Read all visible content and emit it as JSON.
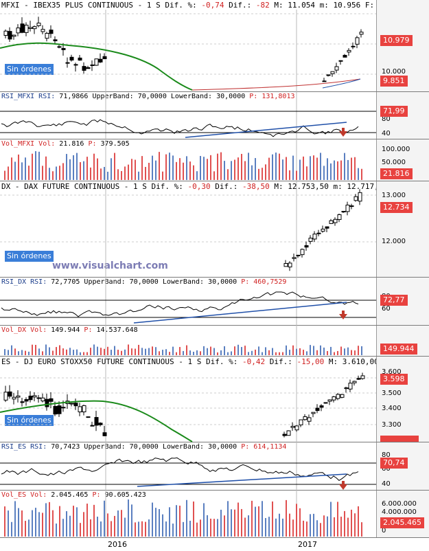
{
  "colors": {
    "up_line": "#1f4fa8",
    "down_line": "#d02020",
    "ma_green": "#1a8a1a",
    "rsi_blue": "#1f4fa8",
    "vol_blue": "#5a7fc0",
    "vol_red": "#e05050"
  },
  "panels": {
    "mfxi": {
      "header_a": "MFXI - IBEX35 PLUS CONTINUOUS -  1 S Dif. %: ",
      "dif_pct": "-0,74",
      "header_b": " Dif.: ",
      "dif": "-82",
      "header_c": " M: 11.054 m: 10.956 F:",
      "ticks": [
        "10.979",
        "10.000",
        "9.851"
      ],
      "badge_last": "10.979",
      "badge_low": "9.851",
      "sin_ordenes": "Sin órdenes"
    },
    "rsi_mfxi": {
      "label": "RSI_MFXI RSI: ",
      "value": "71,9866",
      "ub": " UpperBand: 70,0000 LowerBand: 30,0000 ",
      "p_label": "P: ",
      "p": "131,8013",
      "ticks": [
        "80",
        "40"
      ],
      "badge": "71,99"
    },
    "vol_mfxi": {
      "label": "Vol_MFXI Vol: ",
      "value": "21.816",
      "p_label": " P: ",
      "p": "379.505",
      "ticks": [
        "100.000",
        "50.000"
      ],
      "badge": "21.816"
    },
    "dx": {
      "header_a": "DX - DAX FUTURE CONTINUOUS -  1 S Dif. %: ",
      "dif_pct": "-0,30",
      "header_b": " Dif.: ",
      "dif": "-38,50",
      "header_c": " M: 12.753,50 m: 12.717,",
      "ticks": [
        "13.000",
        "12.000"
      ],
      "badge_last": "12.734",
      "sin_ordenes": "Sin órdenes",
      "watermark": "www.visualchart.com"
    },
    "rsi_dx": {
      "label": "RSI_DX RSI: ",
      "value": "72,7705",
      "ub": " UpperBand: 70,0000 LowerBand: 30,0000 ",
      "p_label": "P: ",
      "p": "460,7529",
      "ticks": [
        "80",
        "60"
      ],
      "badge": "72,77"
    },
    "vol_dx": {
      "label": "Vol_DX Vol: ",
      "value": "149.944",
      "p_label": " P: ",
      "p": "14.537.648",
      "badge": "149.944"
    },
    "es": {
      "header_a": "ES - DJ EURO STOXX50 FUTURE CONTINUOUS -  1 S Dif. %: ",
      "dif_pct": "-0,42",
      "header_b": " Dif.: ",
      "dif": "-15,00",
      "header_c": " M: 3.610,00",
      "ticks": [
        "3.600",
        "3.500",
        "3.400",
        "3.300"
      ],
      "badge_last": "3.598",
      "sin_ordenes": "Sin órdenes"
    },
    "rsi_es": {
      "label": "RSI_ES RSI: ",
      "value": "70,7423",
      "ub": " UpperBand: 70,0000 LowerBand: 30,0000 ",
      "p_label": "P: ",
      "p": "614,1134",
      "ticks": [
        "80",
        "60",
        "40"
      ],
      "badge": "70,74"
    },
    "vol_es": {
      "label": "Vol_ES Vol: ",
      "value": "2.045.465",
      "p_label": " P: ",
      "p": "90.605.423",
      "ticks": [
        "6.000.000",
        "4.000.000",
        "2.000.000",
        "0"
      ],
      "badge": "2.045.465"
    }
  },
  "x_axis": {
    "labels": [
      "2016",
      "2017"
    ]
  },
  "chart_data": [
    {
      "type": "candlestick",
      "title": "MFXI - IBEX35 PLUS CONTINUOUS",
      "last": 10979,
      "high": 11054,
      "low": 10956,
      "ylim_visible": [
        9851,
        11054
      ],
      "series": [
        {
          "name": "MFXI",
          "values": []
        }
      ]
    },
    {
      "type": "line",
      "title": "RSI_MFXI",
      "values_last": 71.9866,
      "bands": [
        70,
        30
      ]
    },
    {
      "type": "bar",
      "title": "Vol_MFXI",
      "values_last": 21816
    },
    {
      "type": "candlestick",
      "title": "DX - DAX FUTURE CONTINUOUS",
      "last": 12734,
      "high": 12753.5,
      "low": 12717
    },
    {
      "type": "line",
      "title": "RSI_DX",
      "values_last": 72.7705,
      "bands": [
        70,
        30
      ]
    },
    {
      "type": "bar",
      "title": "Vol_DX",
      "values_last": 149944
    },
    {
      "type": "candlestick",
      "title": "ES - DJ EURO STOXX50 FUTURE CONTINUOUS",
      "last": 3598,
      "high": 3610
    },
    {
      "type": "line",
      "title": "RSI_ES",
      "values_last": 70.7423,
      "bands": [
        70,
        30
      ]
    },
    {
      "type": "bar",
      "title": "Vol_ES",
      "values_last": 2045465
    }
  ]
}
